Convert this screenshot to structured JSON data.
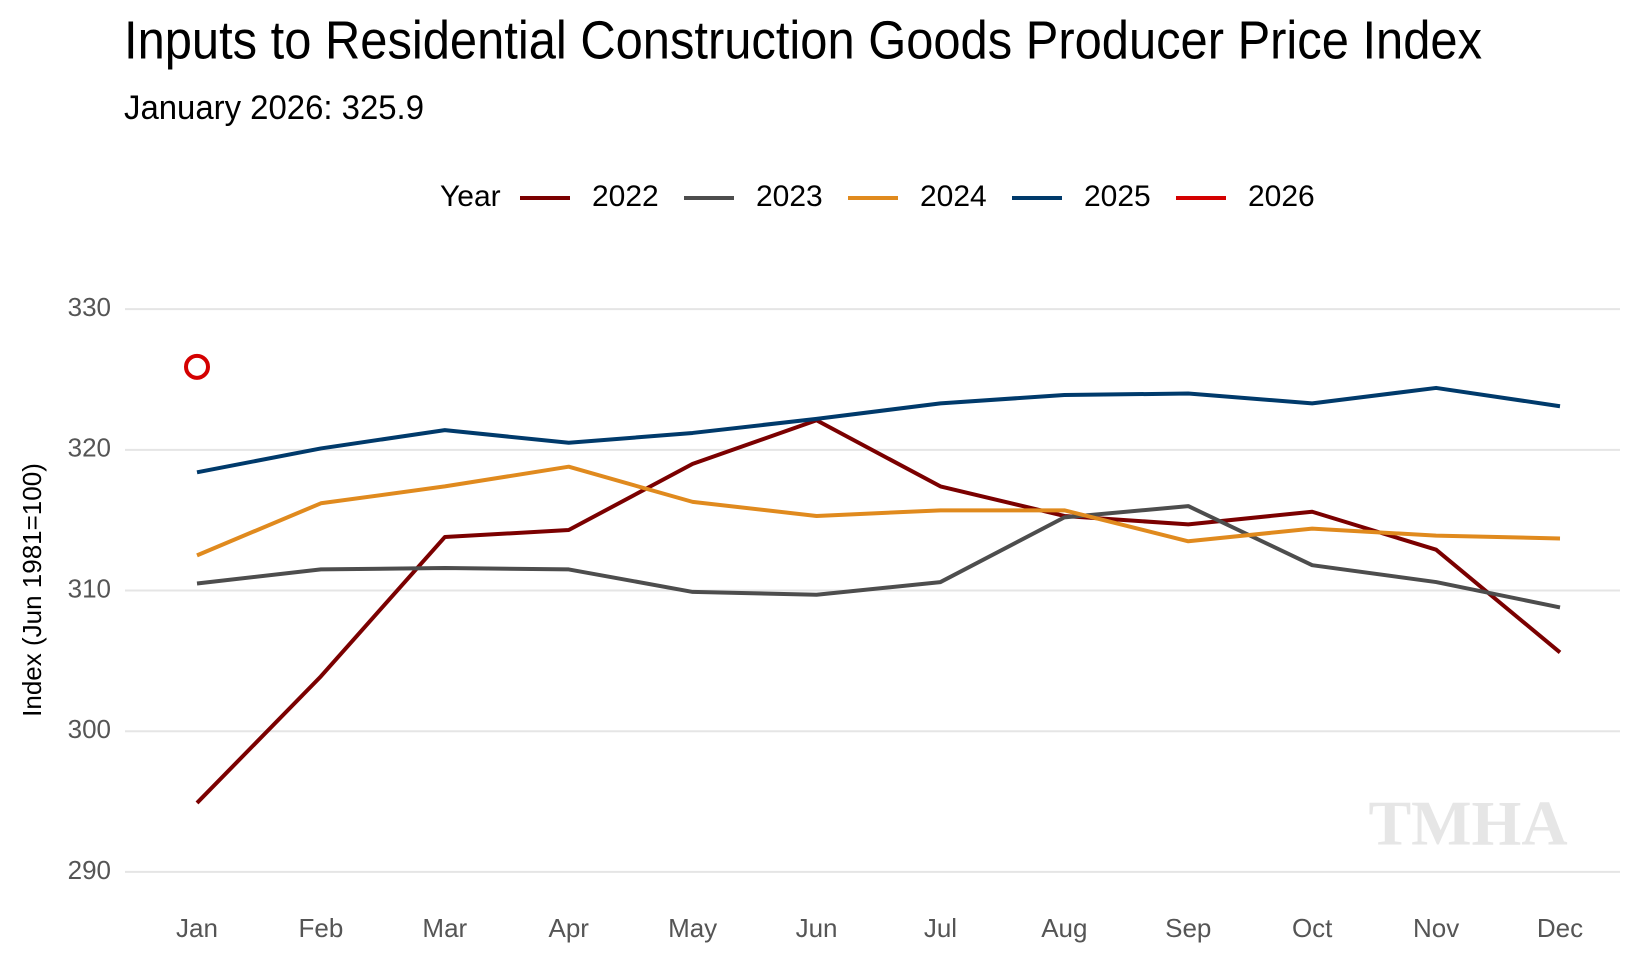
{
  "chart_data": {
    "type": "line",
    "title": "Inputs to Residential Construction Goods Producer Price Index",
    "subtitle": "January 2026: 325.9",
    "legend_title": "Year",
    "y_label": "Index (Jun 1981=100)",
    "watermark": "TMHA",
    "categories": [
      "Jan",
      "Feb",
      "Mar",
      "Apr",
      "May",
      "Jun",
      "Jul",
      "Aug",
      "Sep",
      "Oct",
      "Nov",
      "Dec"
    ],
    "series": [
      {
        "name": "2022",
        "color": "#7b0000",
        "values": [
          294.9,
          303.9,
          313.8,
          314.3,
          319.0,
          322.1,
          317.4,
          315.3,
          314.7,
          315.6,
          312.9,
          305.6
        ]
      },
      {
        "name": "2023",
        "color": "#4d4d4d",
        "values": [
          310.5,
          311.5,
          311.6,
          311.5,
          309.9,
          309.7,
          310.6,
          315.2,
          316.0,
          311.8,
          310.6,
          308.8
        ]
      },
      {
        "name": "2024",
        "color": "#e08a1e",
        "values": [
          312.5,
          316.2,
          317.4,
          318.8,
          316.3,
          315.3,
          315.7,
          315.7,
          313.5,
          314.4,
          313.9,
          313.7
        ]
      },
      {
        "name": "2025",
        "color": "#003a6b",
        "values": [
          318.4,
          320.1,
          321.4,
          320.5,
          321.2,
          322.2,
          323.3,
          323.9,
          324.0,
          323.3,
          324.4,
          323.1
        ]
      },
      {
        "name": "2026",
        "color": "#d40000",
        "values": [
          325.9,
          null,
          null,
          null,
          null,
          null,
          null,
          null,
          null,
          null,
          null,
          null
        ]
      }
    ],
    "ylim": [
      288.5,
      332
    ],
    "yticks": [
      290,
      300,
      310,
      320,
      330
    ],
    "grid": true,
    "legend": "top"
  }
}
